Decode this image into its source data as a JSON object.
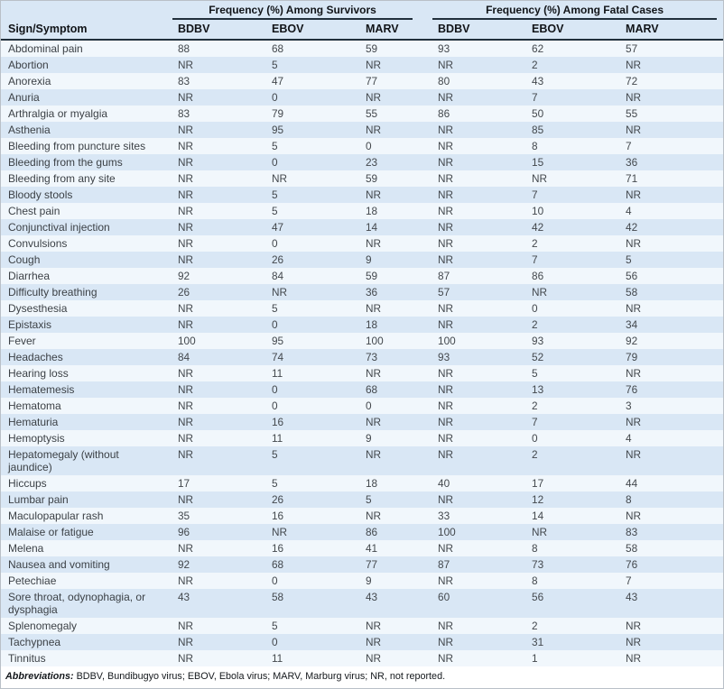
{
  "table": {
    "col1_header": "Sign/Symptom",
    "groups": [
      {
        "label": "Frequency (%) Among Survivors",
        "columns": [
          "BDBV",
          "EBOV",
          "MARV"
        ]
      },
      {
        "label": "Frequency (%) Among Fatal Cases",
        "columns": [
          "BDBV",
          "EBOV",
          "MARV"
        ]
      }
    ],
    "rows": [
      {
        "symptom": "Abdominal pain",
        "survivors": [
          "88",
          "68",
          "59"
        ],
        "fatal": [
          "93",
          "62",
          "57"
        ]
      },
      {
        "symptom": "Abortion",
        "survivors": [
          "NR",
          "5",
          "NR"
        ],
        "fatal": [
          "NR",
          "2",
          "NR"
        ]
      },
      {
        "symptom": "Anorexia",
        "survivors": [
          "83",
          "47",
          "77"
        ],
        "fatal": [
          "80",
          "43",
          "72"
        ]
      },
      {
        "symptom": "Anuria",
        "survivors": [
          "NR",
          "0",
          "NR"
        ],
        "fatal": [
          "NR",
          "7",
          "NR"
        ]
      },
      {
        "symptom": "Arthralgia or myalgia",
        "survivors": [
          "83",
          "79",
          "55"
        ],
        "fatal": [
          "86",
          "50",
          "55"
        ]
      },
      {
        "symptom": "Asthenia",
        "survivors": [
          "NR",
          "95",
          "NR"
        ],
        "fatal": [
          "NR",
          "85",
          "NR"
        ]
      },
      {
        "symptom": "Bleeding from puncture sites",
        "survivors": [
          "NR",
          "5",
          "0"
        ],
        "fatal": [
          "NR",
          "8",
          "7"
        ]
      },
      {
        "symptom": "Bleeding from the gums",
        "survivors": [
          "NR",
          "0",
          "23"
        ],
        "fatal": [
          "NR",
          "15",
          "36"
        ]
      },
      {
        "symptom": "Bleeding from any site",
        "survivors": [
          "NR",
          "NR",
          "59"
        ],
        "fatal": [
          "NR",
          "NR",
          "71"
        ]
      },
      {
        "symptom": "Bloody stools",
        "survivors": [
          "NR",
          "5",
          "NR"
        ],
        "fatal": [
          "NR",
          "7",
          "NR"
        ]
      },
      {
        "symptom": "Chest pain",
        "survivors": [
          "NR",
          "5",
          "18"
        ],
        "fatal": [
          "NR",
          "10",
          "4"
        ]
      },
      {
        "symptom": "Conjunctival injection",
        "survivors": [
          "NR",
          "47",
          "14"
        ],
        "fatal": [
          "NR",
          "42",
          "42"
        ]
      },
      {
        "symptom": "Convulsions",
        "survivors": [
          "NR",
          "0",
          "NR"
        ],
        "fatal": [
          "NR",
          "2",
          "NR"
        ]
      },
      {
        "symptom": "Cough",
        "survivors": [
          "NR",
          "26",
          "9"
        ],
        "fatal": [
          "NR",
          "7",
          "5"
        ]
      },
      {
        "symptom": "Diarrhea",
        "survivors": [
          "92",
          "84",
          "59"
        ],
        "fatal": [
          "87",
          "86",
          "56"
        ]
      },
      {
        "symptom": "Difficulty breathing",
        "survivors": [
          "26",
          "NR",
          "36"
        ],
        "fatal": [
          "57",
          "NR",
          "58"
        ]
      },
      {
        "symptom": "Dysesthesia",
        "survivors": [
          "NR",
          "5",
          "NR"
        ],
        "fatal": [
          "NR",
          "0",
          "NR"
        ]
      },
      {
        "symptom": "Epistaxis",
        "survivors": [
          "NR",
          "0",
          "18"
        ],
        "fatal": [
          "NR",
          "2",
          "34"
        ]
      },
      {
        "symptom": "Fever",
        "survivors": [
          "100",
          "95",
          "100"
        ],
        "fatal": [
          "100",
          "93",
          "92"
        ]
      },
      {
        "symptom": "Headaches",
        "survivors": [
          "84",
          "74",
          "73"
        ],
        "fatal": [
          "93",
          "52",
          "79"
        ]
      },
      {
        "symptom": "Hearing loss",
        "survivors": [
          "NR",
          "11",
          "NR"
        ],
        "fatal": [
          "NR",
          "5",
          "NR"
        ]
      },
      {
        "symptom": "Hematemesis",
        "survivors": [
          "NR",
          "0",
          "68"
        ],
        "fatal": [
          "NR",
          "13",
          "76"
        ]
      },
      {
        "symptom": "Hematoma",
        "survivors": [
          "NR",
          "0",
          "0"
        ],
        "fatal": [
          "NR",
          "2",
          "3"
        ]
      },
      {
        "symptom": "Hematuria",
        "survivors": [
          "NR",
          "16",
          "NR"
        ],
        "fatal": [
          "NR",
          "7",
          "NR"
        ]
      },
      {
        "symptom": "Hemoptysis",
        "survivors": [
          "NR",
          "11",
          "9"
        ],
        "fatal": [
          "NR",
          "0",
          "4"
        ]
      },
      {
        "symptom": "Hepatomegaly (without jaundice)",
        "survivors": [
          "NR",
          "5",
          "NR"
        ],
        "fatal": [
          "NR",
          "2",
          "NR"
        ]
      },
      {
        "symptom": "Hiccups",
        "survivors": [
          "17",
          "5",
          "18"
        ],
        "fatal": [
          "40",
          "17",
          "44"
        ]
      },
      {
        "symptom": "Lumbar pain",
        "survivors": [
          "NR",
          "26",
          "5"
        ],
        "fatal": [
          "NR",
          "12",
          "8"
        ]
      },
      {
        "symptom": "Maculopapular rash",
        "survivors": [
          "35",
          "16",
          "NR"
        ],
        "fatal": [
          "33",
          "14",
          "NR"
        ]
      },
      {
        "symptom": "Malaise or fatigue",
        "survivors": [
          "96",
          "NR",
          "86"
        ],
        "fatal": [
          "100",
          "NR",
          "83"
        ]
      },
      {
        "symptom": "Melena",
        "survivors": [
          "NR",
          "16",
          "41"
        ],
        "fatal": [
          "NR",
          "8",
          "58"
        ]
      },
      {
        "symptom": "Nausea and vomiting",
        "survivors": [
          "92",
          "68",
          "77"
        ],
        "fatal": [
          "87",
          "73",
          "76"
        ]
      },
      {
        "symptom": "Petechiae",
        "survivors": [
          "NR",
          "0",
          "9"
        ],
        "fatal": [
          "NR",
          "8",
          "7"
        ]
      },
      {
        "symptom": "Sore throat, odynophagia, or dysphagia",
        "survivors": [
          "43",
          "58",
          "43"
        ],
        "fatal": [
          "60",
          "56",
          "43"
        ]
      },
      {
        "symptom": "Splenomegaly",
        "survivors": [
          "NR",
          "5",
          "NR"
        ],
        "fatal": [
          "NR",
          "2",
          "NR"
        ]
      },
      {
        "symptom": "Tachypnea",
        "survivors": [
          "NR",
          "0",
          "NR"
        ],
        "fatal": [
          "NR",
          "31",
          "NR"
        ]
      },
      {
        "symptom": "Tinnitus",
        "survivors": [
          "NR",
          "11",
          "NR"
        ],
        "fatal": [
          "NR",
          "1",
          "NR"
        ]
      }
    ],
    "footnote": {
      "label": "Abbreviations:",
      "text": " BDBV, Bundibugyo virus; EBOV, Ebola virus; MARV, Marburg virus; NR, not reported."
    }
  },
  "colors": {
    "header_bg": "#d9e7f5",
    "stripe_blue": "#d9e7f5",
    "stripe_light": "#f1f7fc",
    "header_rule": "#22303c",
    "outer_border": "#b9c0c7",
    "data_text": "#43484d"
  }
}
